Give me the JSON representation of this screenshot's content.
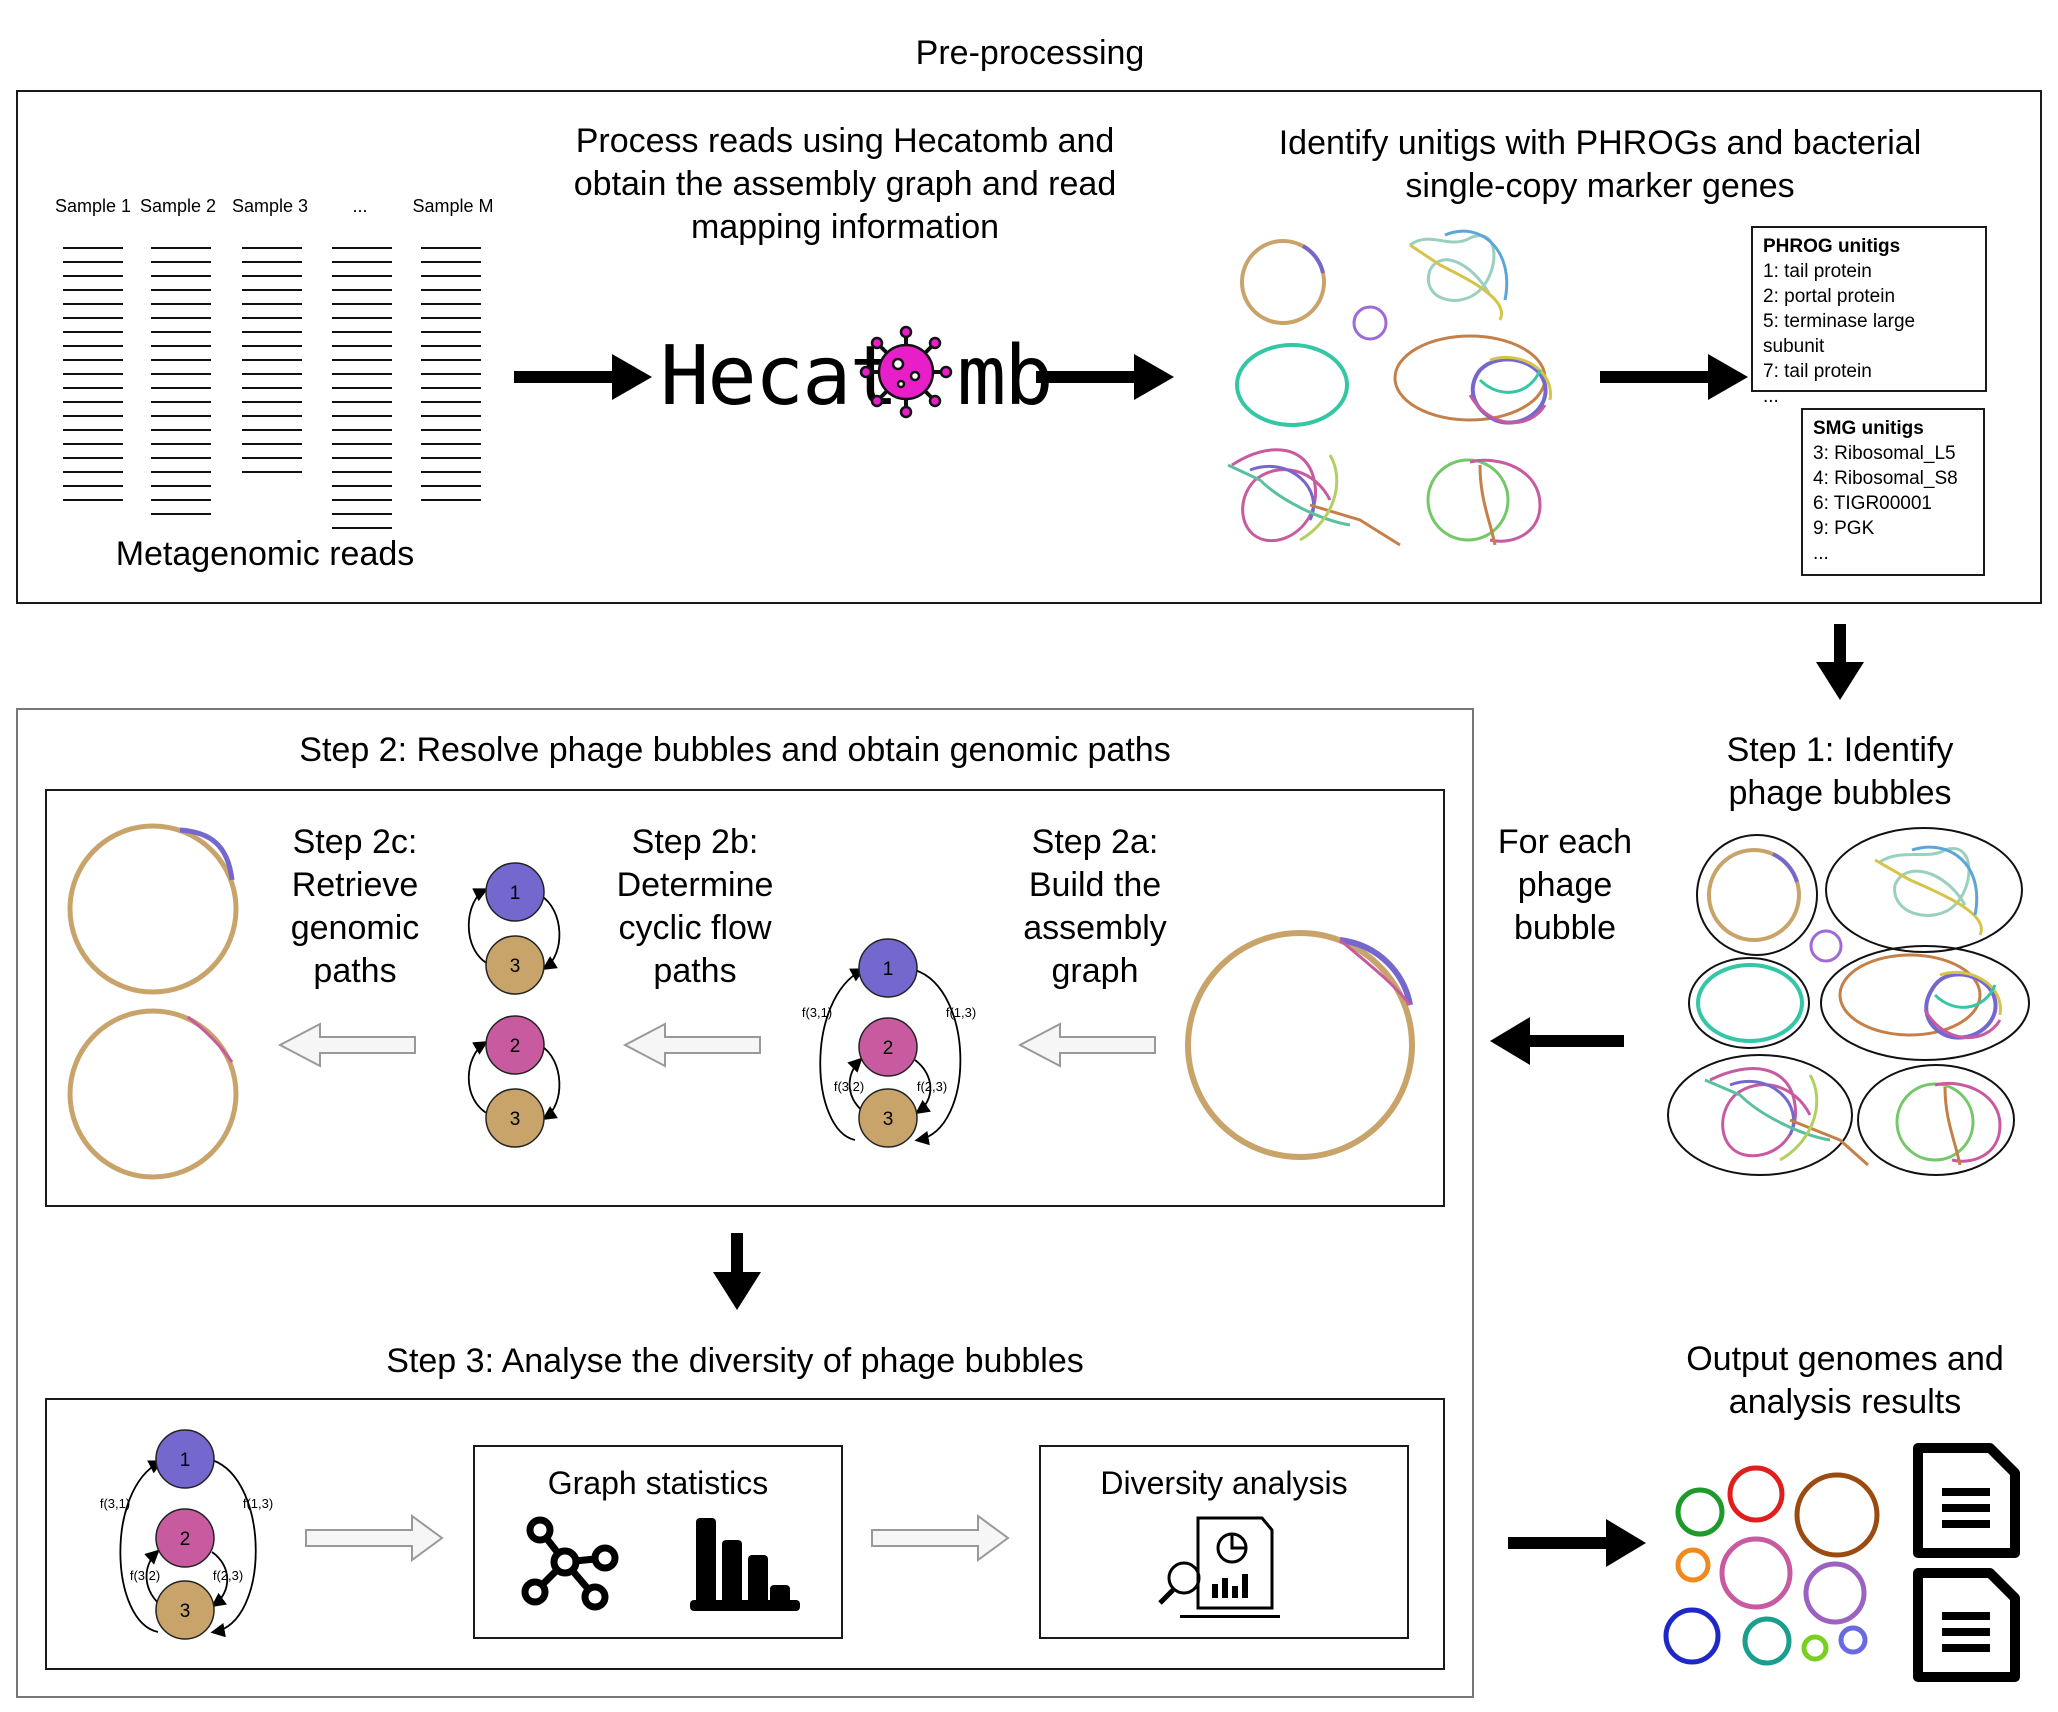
{
  "preprocessing": {
    "title": "Pre-processing",
    "samples": [
      "Sample 1",
      "Sample 2",
      "Sample 3",
      "...",
      "Sample M"
    ],
    "reads_label": "Metagenomic reads",
    "hecatomb_text": "Process reads using Hecatomb and obtain the assembly graph and read mapping information",
    "logo": {
      "part1": "Hecat",
      "part2": "mb",
      "accent": "#e81ec8"
    },
    "identify_text": "Identify unitigs with PHROGs and bacterial single-copy marker genes",
    "phrog": {
      "title": "PHROG unitigs",
      "items": [
        "1: tail protein",
        "2: portal protein",
        "5: terminase large subunit",
        "7: tail protein",
        "..."
      ]
    },
    "smg": {
      "title": "SMG unitigs",
      "items": [
        "3: Ribosomal_L5",
        "4: Ribosomal_S8",
        "6: TIGR00001",
        "9: PGK",
        "..."
      ]
    }
  },
  "step1": {
    "title": "Step 1: Identify phage bubbles",
    "for_each": "For each phage bubble"
  },
  "step2": {
    "title": "Step 2: Resolve phage bubbles and obtain genomic paths",
    "a": "Step 2a: Build the assembly graph",
    "b": "Step 2b: Determine cyclic flow paths",
    "c": "Step 2c: Retrieve genomic paths",
    "nodes": [
      "1",
      "2",
      "3"
    ],
    "flows": [
      "f(3,1)",
      "f(1,3)",
      "f(3,2)",
      "f(2,3)"
    ]
  },
  "step3": {
    "title": "Step 3: Analyse the diversity of phage bubbles",
    "graph_stats": "Graph statistics",
    "diversity": "Diversity analysis"
  },
  "output": {
    "title": "Output genomes and analysis results"
  },
  "colors": {
    "node1": "#7468cf",
    "node2": "#c85ba0",
    "node3": "#c9a46a",
    "genome": "#c9a46a",
    "arrow": "#000000",
    "hollow_arrow_fill": "#f6f6f6",
    "hollow_arrow_stroke": "#999999"
  }
}
